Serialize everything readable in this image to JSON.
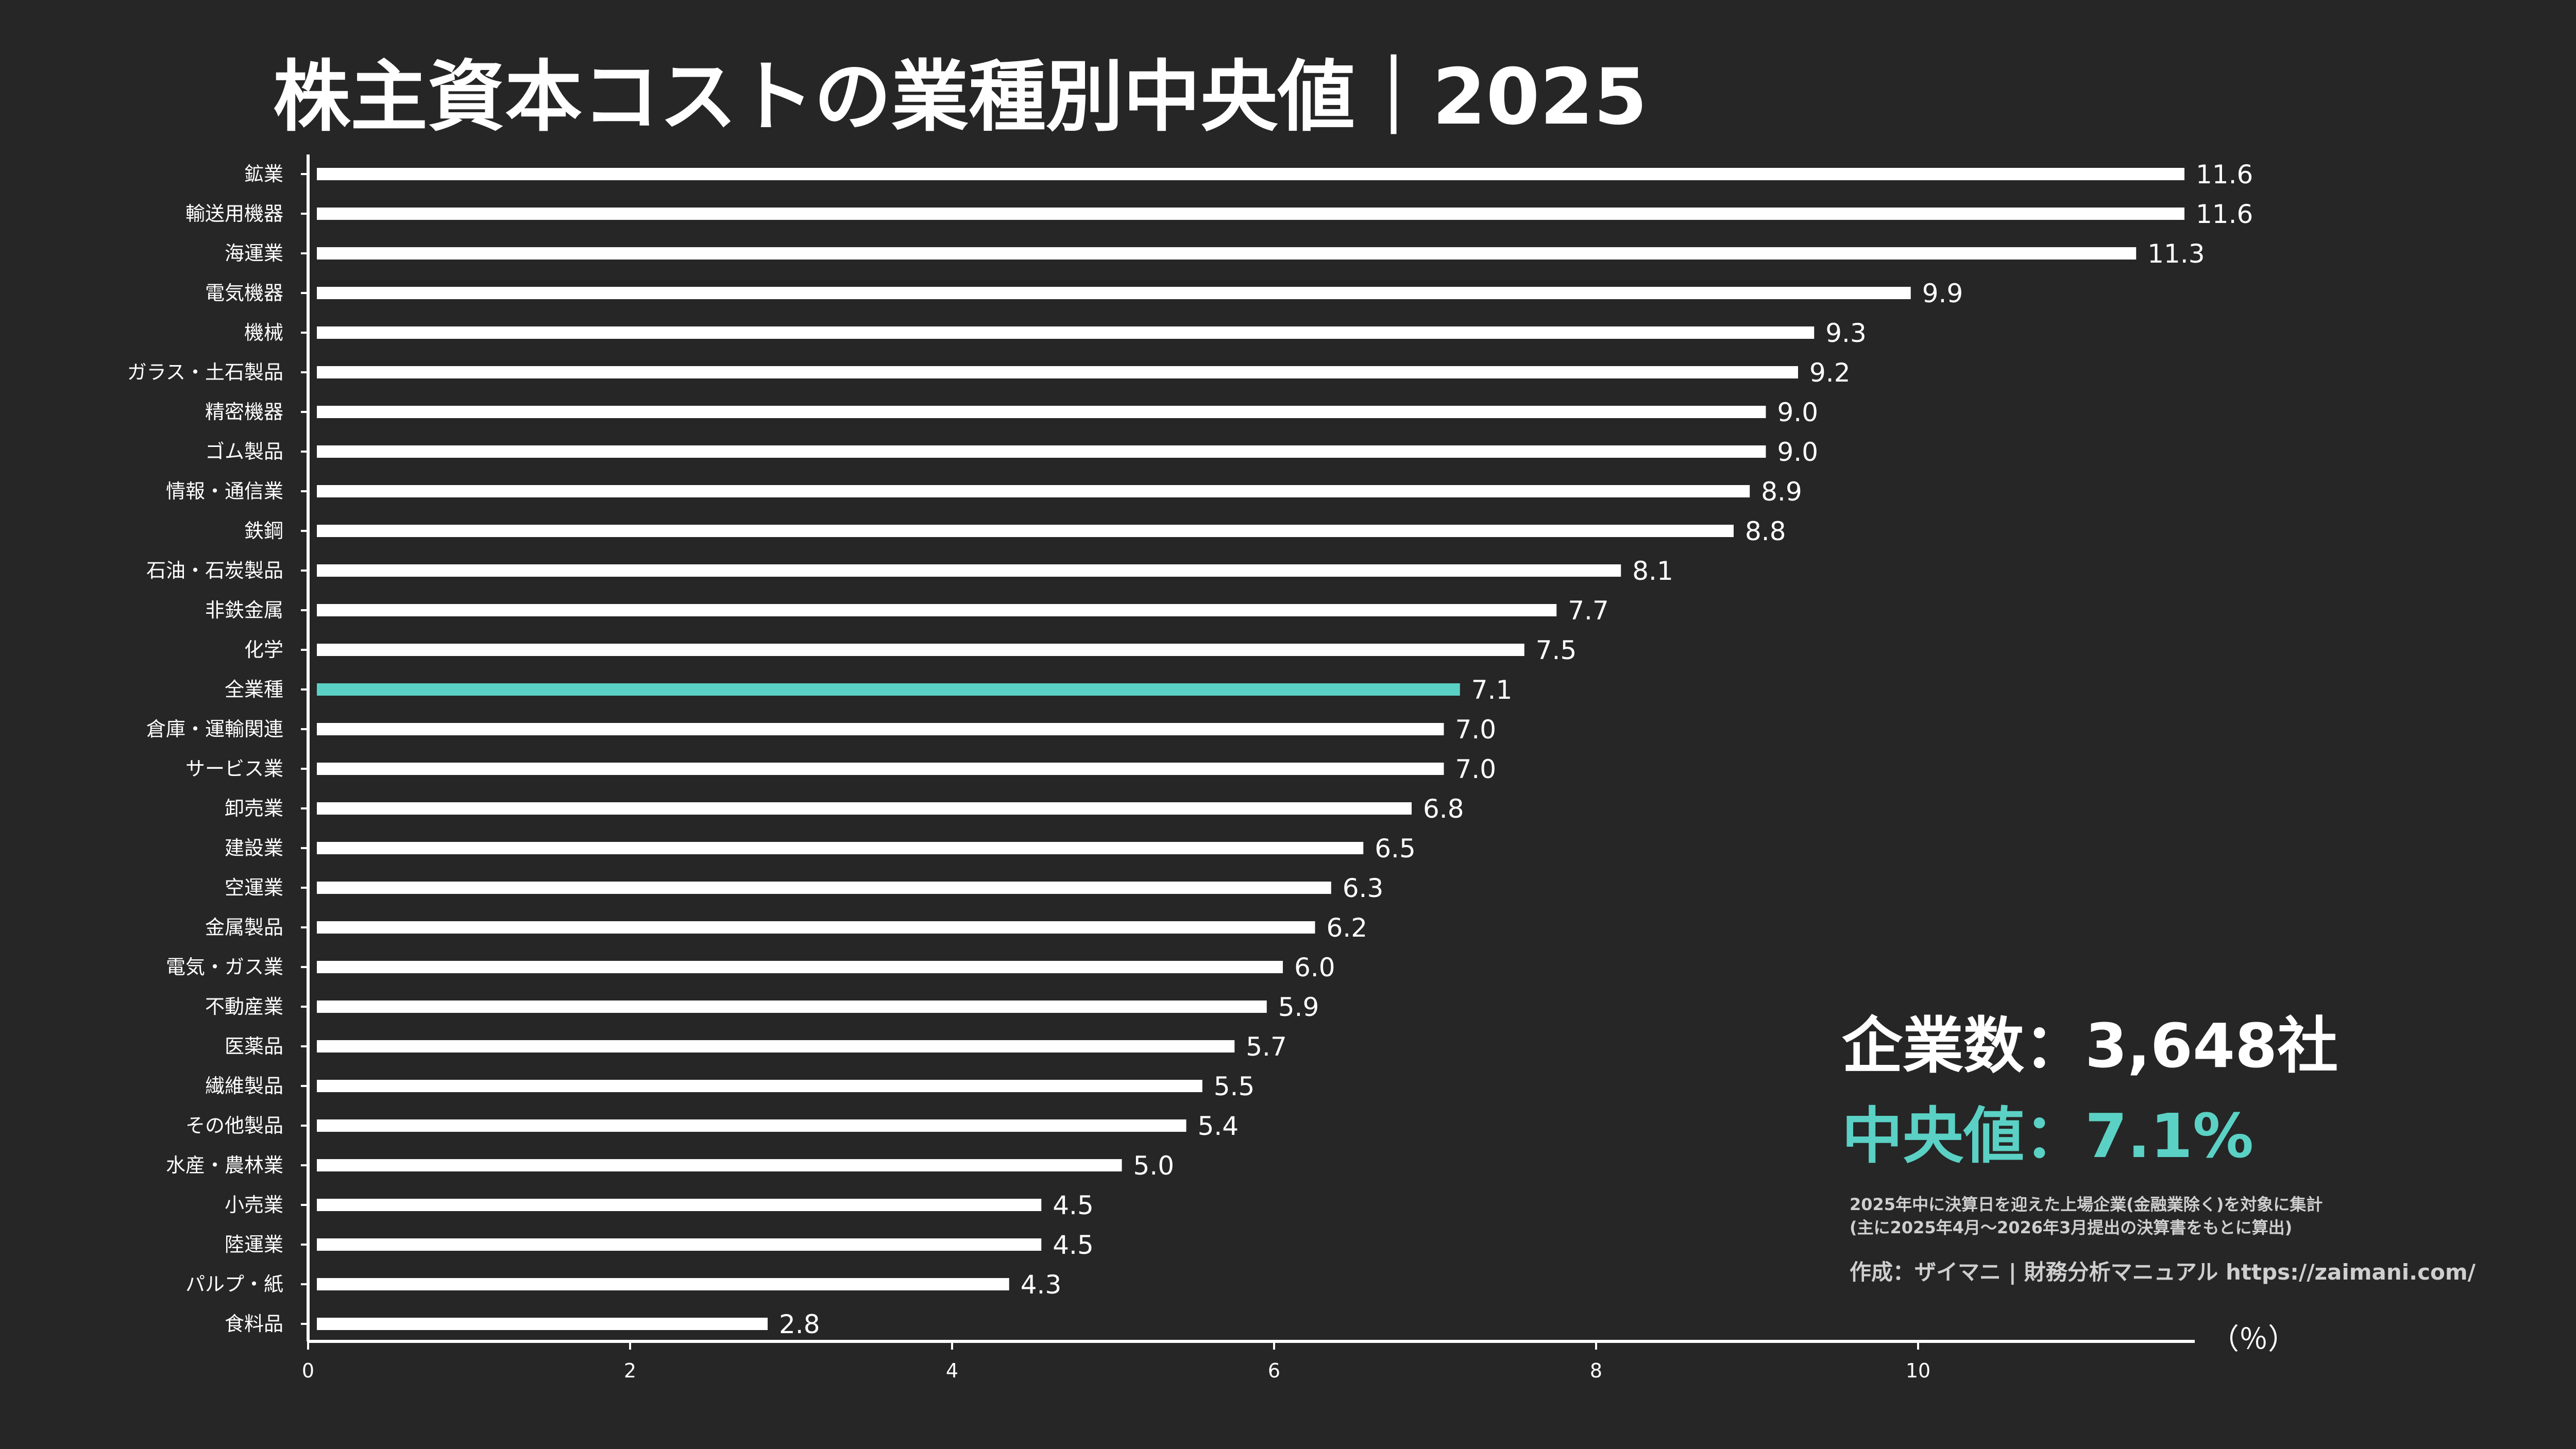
{
  "chart_data": {
    "type": "bar",
    "orientation": "horizontal",
    "title": "株主資本コストの業種別中央値｜2025",
    "unit_label": "（％）",
    "xlim": [
      0,
      11.6
    ],
    "xticks": [
      0,
      2,
      4,
      6,
      8,
      10
    ],
    "highlight_color": "#5ad1c4",
    "bar_color": "#ffffff",
    "background": "#262626",
    "categories": [
      "鉱業",
      "輸送用機器",
      "海運業",
      "電気機器",
      "機械",
      "ガラス・土石製品",
      "精密機器",
      "ゴム製品",
      "情報・通信業",
      "鉄鋼",
      "石油・石炭製品",
      "非鉄金属",
      "化学",
      "全業種",
      "倉庫・運輸関連",
      "サービス業",
      "卸売業",
      "建設業",
      "空運業",
      "金属製品",
      "電気・ガス業",
      "不動産業",
      "医薬品",
      "繊維製品",
      "その他製品",
      "水産・農林業",
      "小売業",
      "陸運業",
      "パルプ・紙",
      "食料品"
    ],
    "values": [
      11.6,
      11.6,
      11.3,
      9.9,
      9.3,
      9.2,
      9.0,
      9.0,
      8.9,
      8.8,
      8.1,
      7.7,
      7.5,
      7.1,
      7.0,
      7.0,
      6.8,
      6.5,
      6.3,
      6.2,
      6.0,
      5.9,
      5.7,
      5.5,
      5.4,
      5.0,
      4.5,
      4.5,
      4.3,
      2.8
    ],
    "value_labels": [
      "11.6",
      "11.6",
      "11.3",
      "9.9",
      "9.3",
      "9.2",
      "9.0",
      "9.0",
      "8.9",
      "8.8",
      "8.1",
      "7.7",
      "7.5",
      "7.1",
      "7.0",
      "7.0",
      "6.8",
      "6.5",
      "6.3",
      "6.2",
      "6.0",
      "5.9",
      "5.7",
      "5.5",
      "5.4",
      "5.0",
      "4.5",
      "4.5",
      "4.3",
      "2.8"
    ],
    "highlight_category": "全業種"
  },
  "summary": {
    "companies": "企業数：3,648社",
    "median": "中央値：7.1%",
    "median_color": "#5ad1c4",
    "note_line1": "2025年中に決算日を迎えた上場企業(金融業除く)を対象に集計",
    "note_line2": "(主に2025年4月〜2026年3月提出の決算書をもとに算出)",
    "credit": "作成：ザイマニ | 財務分析マニュアル https://zaimani.com/"
  }
}
